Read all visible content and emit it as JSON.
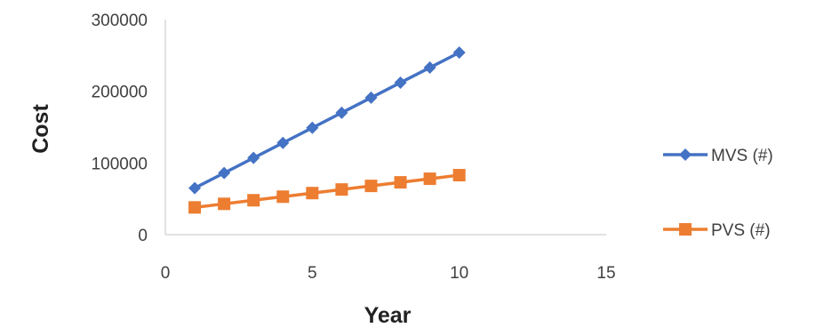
{
  "chart_data": {
    "type": "line",
    "title": "",
    "xlabel": "Year",
    "ylabel": "Cost",
    "xlim": [
      0,
      15
    ],
    "ylim": [
      0,
      300000
    ],
    "x_ticks": [
      0,
      5,
      10,
      15
    ],
    "y_ticks": [
      0,
      100000,
      200000,
      300000
    ],
    "x_tick_labels": [
      "0",
      "5",
      "10",
      "15"
    ],
    "y_tick_labels": [
      "0",
      "100000",
      "200000",
      "300000"
    ],
    "grid": false,
    "legend_position": "right",
    "x": [
      1,
      2,
      3,
      4,
      5,
      6,
      7,
      8,
      9,
      10
    ],
    "series": [
      {
        "name": "MVS (#)",
        "color": "#4472C4",
        "marker": "diamond",
        "values": [
          65000,
          86000,
          107000,
          128000,
          149000,
          170000,
          191000,
          212000,
          233000,
          254000
        ]
      },
      {
        "name": "PVS (#)",
        "color": "#ED7D31",
        "marker": "square",
        "values": [
          38000,
          43000,
          48000,
          53000,
          58000,
          63000,
          68000,
          73000,
          78000,
          83000
        ]
      }
    ]
  }
}
